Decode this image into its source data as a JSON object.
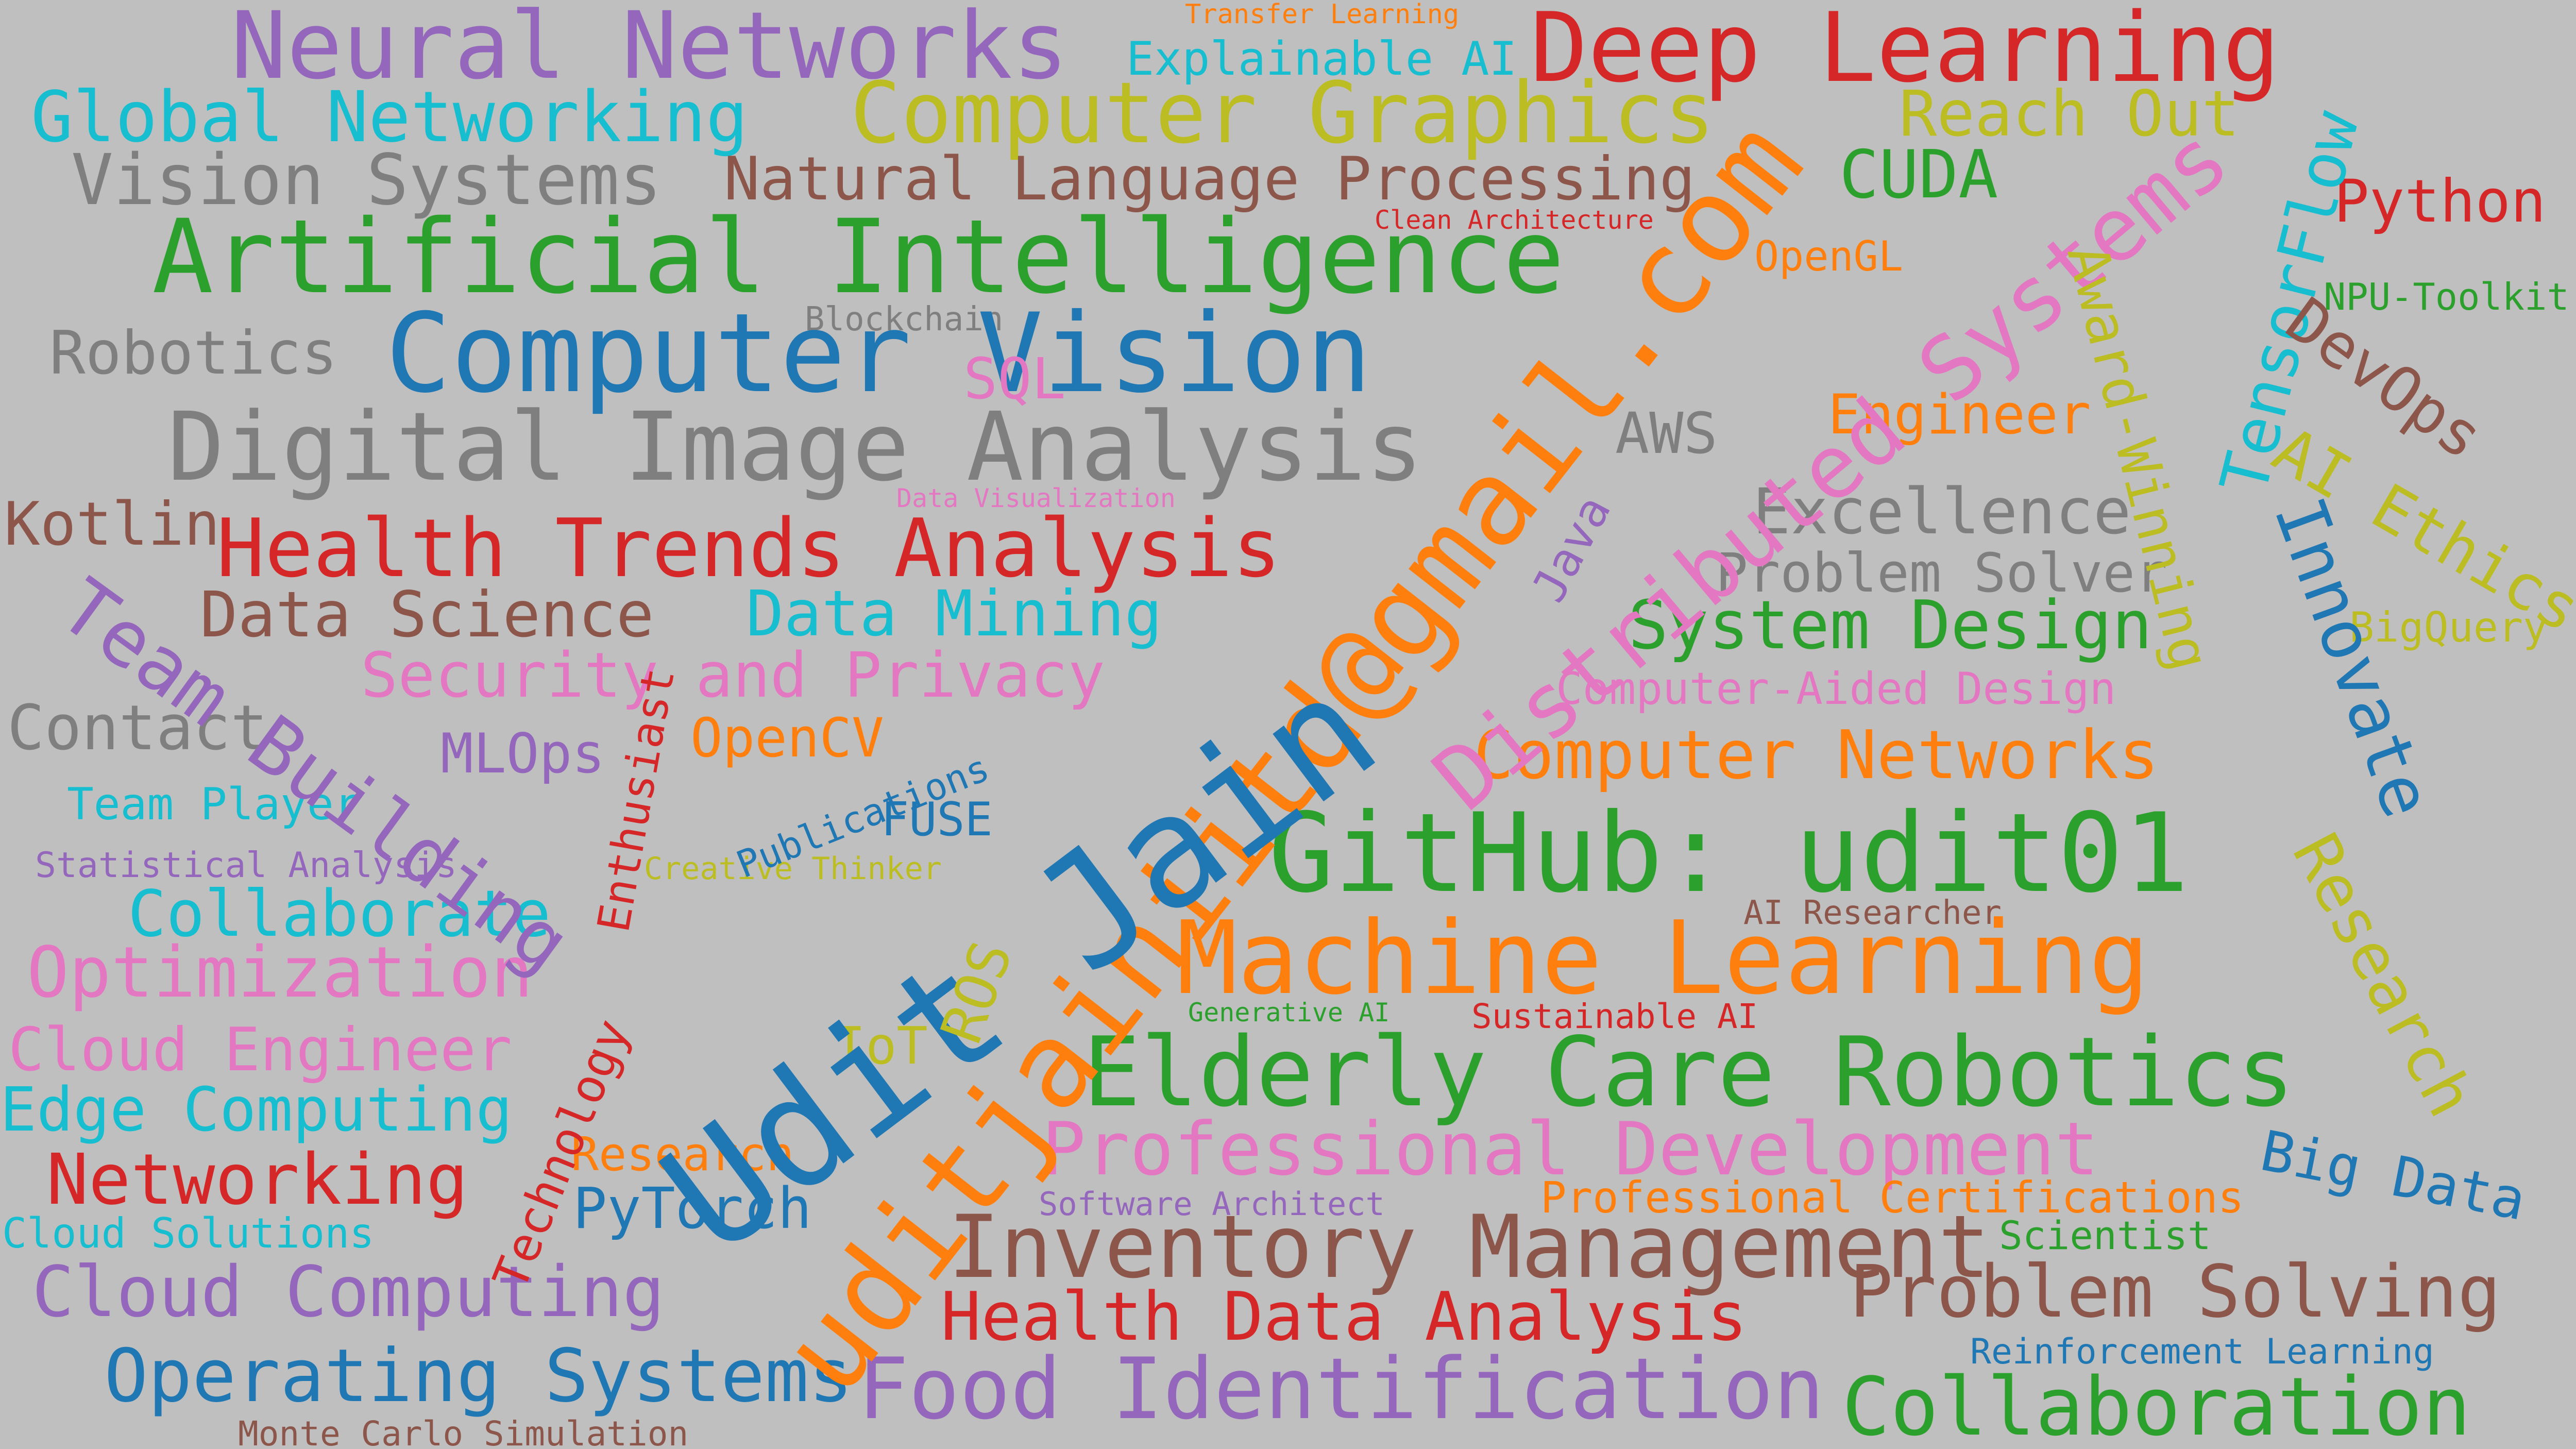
{
  "palette": {
    "blue": "#1f77b4",
    "orange": "#ff7f0e",
    "green": "#2ca02c",
    "red": "#d62728",
    "purple": "#9467bd",
    "brown": "#8c564b",
    "pink": "#e377c2",
    "gray": "#7f7f7f",
    "olive": "#bcbd22",
    "cyan": "#17becf",
    "background": "#bfbfbf"
  },
  "words": [
    {
      "text": "Neural Networks",
      "color": "purple"
    },
    {
      "text": "Transfer Learning",
      "color": "orange"
    },
    {
      "text": "Deep Learning",
      "color": "red"
    },
    {
      "text": "Explainable AI",
      "color": "cyan"
    },
    {
      "text": "Global Networking",
      "color": "cyan"
    },
    {
      "text": "Computer Graphics",
      "color": "olive"
    },
    {
      "text": "Reach Out",
      "color": "olive"
    },
    {
      "text": "Vision Systems",
      "color": "gray"
    },
    {
      "text": "Natural Language Processing",
      "color": "brown"
    },
    {
      "text": "CUDA",
      "color": "green"
    },
    {
      "text": "Python",
      "color": "red"
    },
    {
      "text": "Clean Architecture",
      "color": "red"
    },
    {
      "text": "Artificial Intelligence",
      "color": "green"
    },
    {
      "text": "OpenGL",
      "color": "orange"
    },
    {
      "text": "NPU-Toolkit",
      "color": "green"
    },
    {
      "text": "Blockchain",
      "color": "gray"
    },
    {
      "text": "Robotics",
      "color": "gray"
    },
    {
      "text": "Computer Vision",
      "color": "blue"
    },
    {
      "text": "SQL",
      "color": "pink"
    },
    {
      "text": "Engineer",
      "color": "orange"
    },
    {
      "text": "Digital Image Analysis",
      "color": "gray"
    },
    {
      "text": "AWS",
      "color": "gray"
    },
    {
      "text": "Data Visualization",
      "color": "pink"
    },
    {
      "text": "Kotlin",
      "color": "brown"
    },
    {
      "text": "Excellence",
      "color": "gray"
    },
    {
      "text": "Health Trends Analysis",
      "color": "red"
    },
    {
      "text": "Problem Solver",
      "color": "gray"
    },
    {
      "text": "Data Science",
      "color": "brown"
    },
    {
      "text": "Data Mining",
      "color": "cyan"
    },
    {
      "text": "System Design",
      "color": "green"
    },
    {
      "text": "BigQuery",
      "color": "olive"
    },
    {
      "text": "Security and Privacy",
      "color": "pink"
    },
    {
      "text": "Computer-Aided Design",
      "color": "pink"
    },
    {
      "text": "Contact",
      "color": "gray"
    },
    {
      "text": "OpenCV",
      "color": "orange"
    },
    {
      "text": "MLOps",
      "color": "purple"
    },
    {
      "text": "Computer Networks",
      "color": "orange"
    },
    {
      "text": "Team Player",
      "color": "cyan"
    },
    {
      "text": "FUSE",
      "color": "blue"
    },
    {
      "text": "GitHub: udit01",
      "color": "green"
    },
    {
      "text": "Statistical Analysis",
      "color": "purple"
    },
    {
      "text": "Creative Thinker",
      "color": "olive"
    },
    {
      "text": "Collaborate",
      "color": "cyan"
    },
    {
      "text": "AI Researcher",
      "color": "brown"
    },
    {
      "text": "Machine Learning",
      "color": "orange"
    },
    {
      "text": "Optimization",
      "color": "pink"
    },
    {
      "text": "Generative AI",
      "color": "green"
    },
    {
      "text": "Sustainable AI",
      "color": "red"
    },
    {
      "text": "Cloud Engineer",
      "color": "pink"
    },
    {
      "text": "IoT",
      "color": "olive"
    },
    {
      "text": "Elderly Care Robotics",
      "color": "green"
    },
    {
      "text": "Edge Computing",
      "color": "cyan"
    },
    {
      "text": "Professional Development",
      "color": "pink"
    },
    {
      "text": "Research",
      "color": "orange"
    },
    {
      "text": "Networking",
      "color": "red"
    },
    {
      "text": "Software Architect",
      "color": "purple"
    },
    {
      "text": "Professional Certifications",
      "color": "orange"
    },
    {
      "text": "PyTorch",
      "color": "blue"
    },
    {
      "text": "Cloud Solutions",
      "color": "cyan"
    },
    {
      "text": "Inventory Management",
      "color": "brown"
    },
    {
      "text": "Scientist",
      "color": "green"
    },
    {
      "text": "Cloud Computing",
      "color": "purple"
    },
    {
      "text": "Health Data Analysis",
      "color": "red"
    },
    {
      "text": "Problem Solving",
      "color": "brown"
    },
    {
      "text": "Reinforcement Learning",
      "color": "blue"
    },
    {
      "text": "Operating Systems",
      "color": "blue"
    },
    {
      "text": "Food Identification",
      "color": "purple"
    },
    {
      "text": "Collaboration",
      "color": "green"
    },
    {
      "text": "Monte Carlo Simulation",
      "color": "brown"
    },
    {
      "text": "Big Data",
      "color": "blue"
    },
    {
      "text": "uditjainiitd@gmail.com",
      "color": "orange"
    },
    {
      "text": "Udit Jain",
      "color": "blue"
    },
    {
      "text": "Distributed Systems",
      "color": "pink"
    },
    {
      "text": "Java",
      "color": "purple"
    },
    {
      "text": "Team Building",
      "color": "purple"
    },
    {
      "text": "Enthusiast",
      "color": "red"
    },
    {
      "text": "Publications",
      "color": "blue"
    },
    {
      "text": "ROS",
      "color": "olive"
    },
    {
      "text": "Technology",
      "color": "red"
    },
    {
      "text": "TensorFlow",
      "color": "cyan"
    },
    {
      "text": "Award-Winning",
      "color": "olive"
    },
    {
      "text": "DevOps",
      "color": "brown"
    },
    {
      "text": "AI Ethics",
      "color": "olive"
    },
    {
      "text": "Innovate",
      "color": "blue"
    },
    {
      "text": "Research",
      "color": "olive"
    }
  ]
}
